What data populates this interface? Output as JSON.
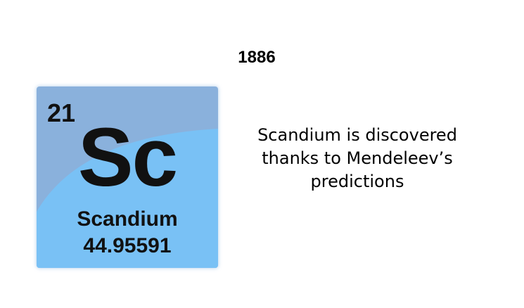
{
  "year": "1886",
  "element": {
    "atomic_number": "21",
    "symbol": "Sc",
    "name": "Scandium",
    "atomic_mass": "44.95591"
  },
  "caption_lines": [
    "Scandium is discovered",
    "thanks to Mendeleev’s",
    "predictions"
  ],
  "colors": {
    "tile_dark": "#8ab1dc",
    "tile_light": "#79c1f5",
    "text": "#111111"
  }
}
